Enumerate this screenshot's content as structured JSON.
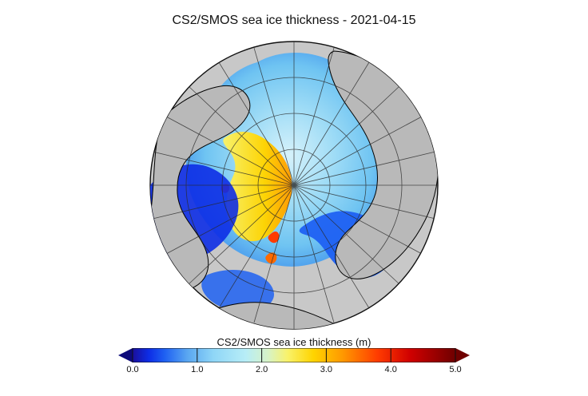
{
  "title": "CS2/SMOS sea ice thickness - 2021-04-15",
  "map": {
    "projection": "north-polar-stereographic",
    "land_color": "#b9b9b9",
    "ocean_background": "#c8c8c8",
    "coastline_color": "#000000",
    "graticule_color": "#2a2a2a"
  },
  "colorbar": {
    "label": "CS2/SMOS sea ice thickness (m)",
    "min": 0.0,
    "max": 5.0,
    "extend": "both",
    "ticks": [
      "0.0",
      "1.0",
      "2.0",
      "3.0",
      "4.0",
      "5.0"
    ],
    "stops": [
      {
        "value": 0.0,
        "color": "#1a0f9c"
      },
      {
        "value": 0.25,
        "color": "#0d2de6"
      },
      {
        "value": 0.5,
        "color": "#1f61f2"
      },
      {
        "value": 0.85,
        "color": "#5aa7f1"
      },
      {
        "value": 1.25,
        "color": "#8fd6f7"
      },
      {
        "value": 1.75,
        "color": "#b7edf7"
      },
      {
        "value": 2.1,
        "color": "#d7f3c7"
      },
      {
        "value": 2.4,
        "color": "#f9f26a"
      },
      {
        "value": 2.8,
        "color": "#ffd400"
      },
      {
        "value": 3.25,
        "color": "#ff9900"
      },
      {
        "value": 3.8,
        "color": "#ff3b00"
      },
      {
        "value": 4.3,
        "color": "#d00000"
      },
      {
        "value": 5.0,
        "color": "#6f0000"
      }
    ],
    "under_color": "#0d0a7a",
    "over_color": "#6f0000"
  }
}
